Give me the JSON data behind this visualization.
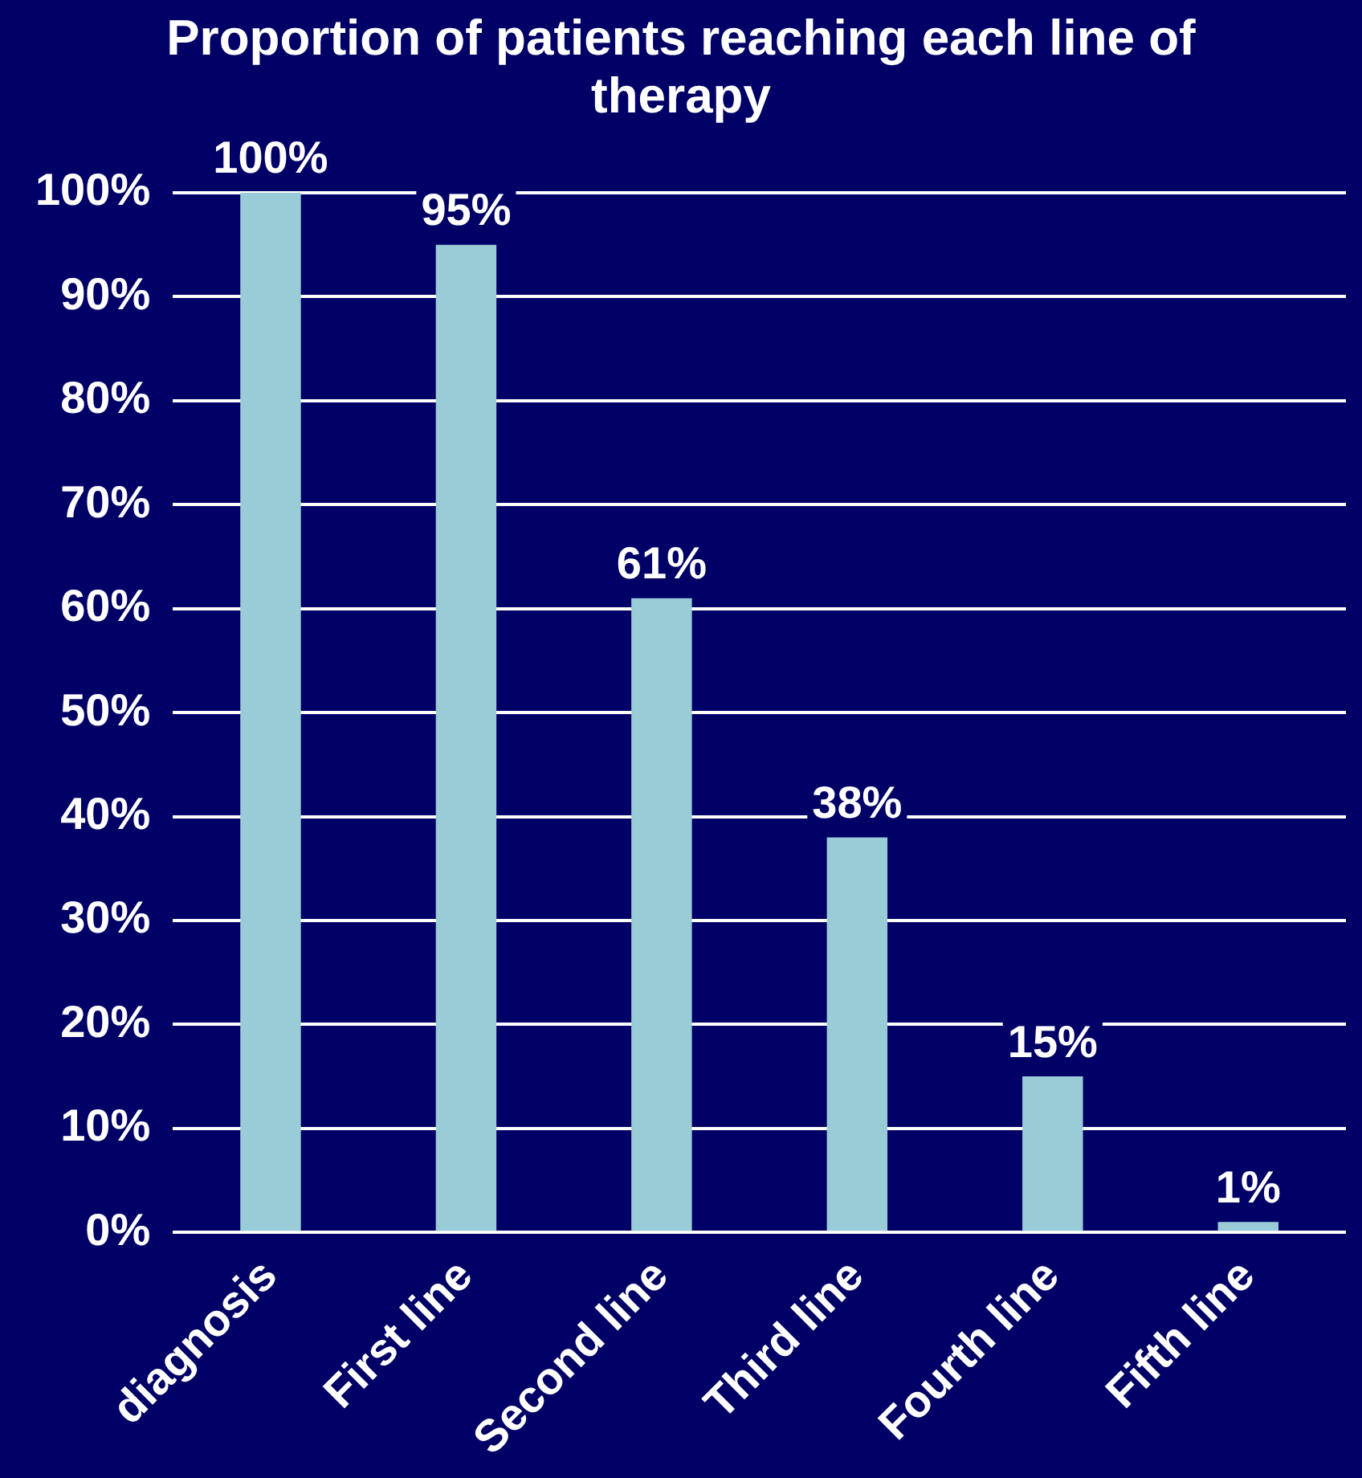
{
  "chart_data": {
    "type": "bar",
    "title": "Proportion of patients reaching each line of therapy",
    "categories": [
      "diagnosis",
      "First line",
      "Second line",
      "Third line",
      "Fourth line",
      "Fifth line"
    ],
    "values": [
      100,
      95,
      61,
      38,
      15,
      1
    ],
    "value_labels": [
      "100%",
      "95%",
      "61%",
      "38%",
      "15%",
      "1%"
    ],
    "color": "#99ccd6",
    "ylim": [
      0,
      100
    ],
    "yticks": [
      {
        "value": 0,
        "label": "0%"
      },
      {
        "value": 10,
        "label": "10%"
      },
      {
        "value": 20,
        "label": "20%"
      },
      {
        "value": 30,
        "label": "30%"
      },
      {
        "value": 40,
        "label": "40%"
      },
      {
        "value": 50,
        "label": "50%"
      },
      {
        "value": 60,
        "label": "60%"
      },
      {
        "value": 70,
        "label": "70%"
      },
      {
        "value": 80,
        "label": "80%"
      },
      {
        "value": 90,
        "label": "90%"
      },
      {
        "value": 100,
        "label": "100%"
      }
    ],
    "grid": "y",
    "legend": false
  }
}
